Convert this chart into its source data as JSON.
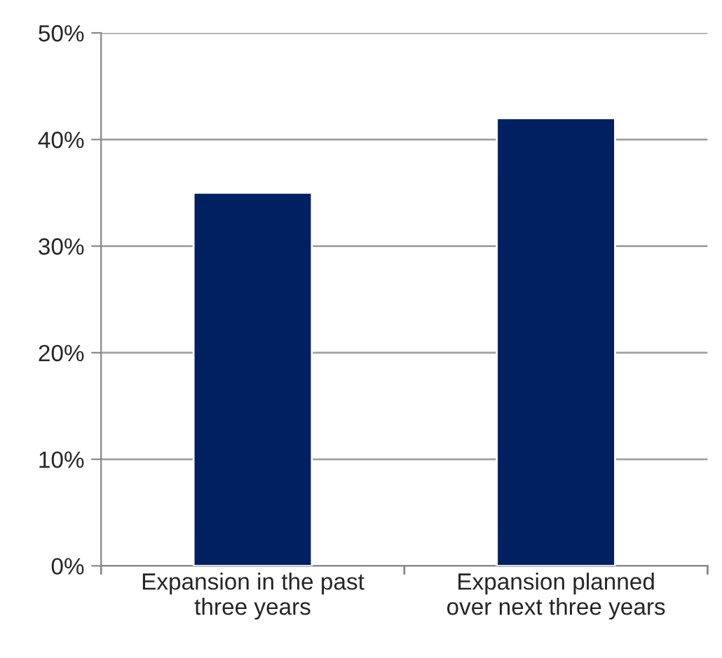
{
  "chart_data": {
    "type": "bar",
    "categories": [
      "Expansion in the past\nthree years",
      "Expansion planned\nover next three years"
    ],
    "values": [
      35,
      42
    ],
    "color": "#002060",
    "ylim": [
      0,
      50
    ],
    "yticks": [
      {
        "value": 0,
        "label": "0%"
      },
      {
        "value": 10,
        "label": "10%"
      },
      {
        "value": 20,
        "label": "20%"
      },
      {
        "value": 30,
        "label": "30%"
      },
      {
        "value": 40,
        "label": "40%"
      },
      {
        "value": 50,
        "label": "50%"
      }
    ],
    "grid": "y"
  }
}
